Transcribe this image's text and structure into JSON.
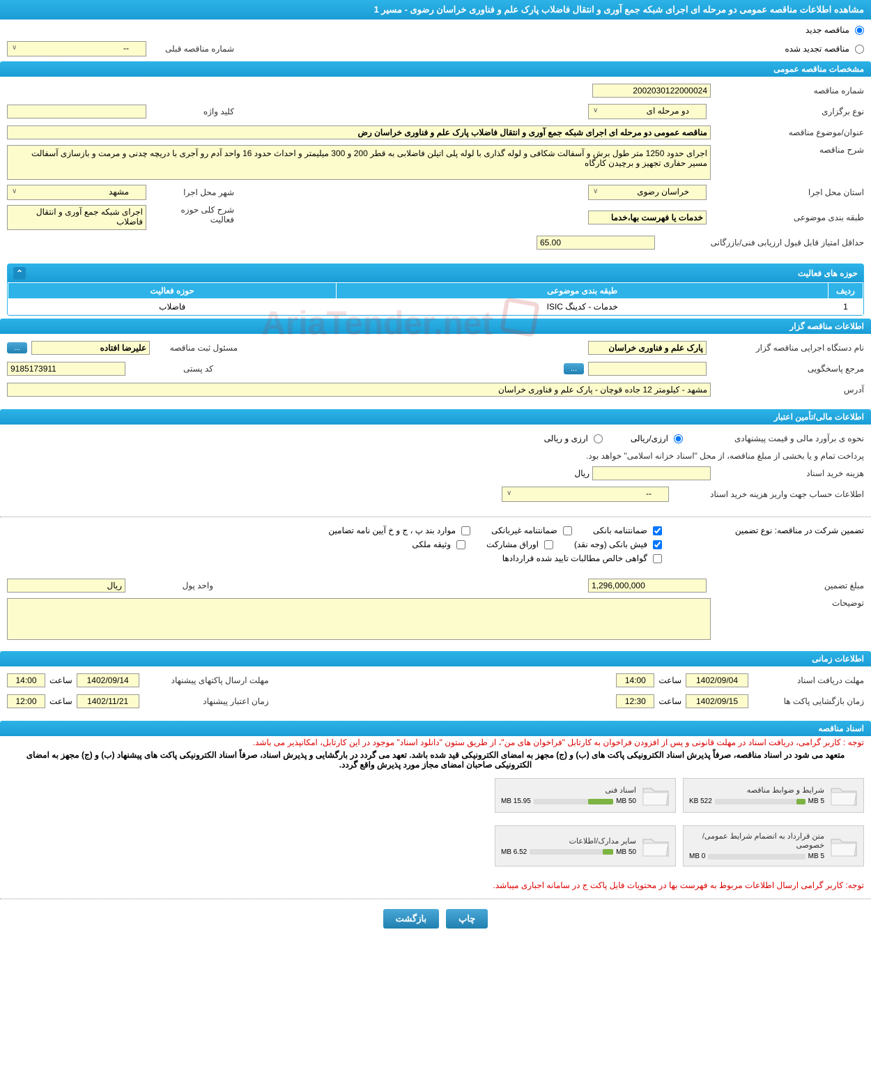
{
  "page_title": "مشاهده اطلاعات مناقصه عمومی دو مرحله ای اجرای شبکه جمع آوری و انتقال فاضلاب پارک علم و فناوری خراسان رضوی - مسیر 1",
  "tender_status": {
    "new_label": "مناقصه جدید",
    "renewed_label": "مناقصه تجدید شده",
    "prev_number_label": "شماره مناقصه قبلی",
    "prev_number_value": "--"
  },
  "section_general": {
    "header": "مشخصات مناقصه عمومی",
    "number_label": "شماره مناقصه",
    "number_value": "2002030122000024",
    "type_label": "نوع برگزاری",
    "type_value": "دو مرحله ای",
    "keyword_label": "کلید واژه",
    "keyword_value": "",
    "subject_label": "عنوان/موضوع مناقصه",
    "subject_value": "مناقصه عمومی دو مرحله ای اجرای شبکه جمع آوری و انتقال فاضلاب پارک علم و فناوری خراسان رض",
    "desc_label": "شرح مناقصه",
    "desc_value": "اجرای حدود 1250 متر طول برش و آسفالت شکافی و لوله گذاری با لوله پلی اتیلن فاضلابی به قطر 200 و 300 میلیمتر و احداث حدود 16 واحد آدم رو آجری با دریچه چدنی و مرمت و بازسازی آسفالت مسیر حفاری تجهیز و برچیدن کارگاه",
    "province_label": "استان محل اجرا",
    "province_value": "خراسان رضوی",
    "city_label": "شهر محل اجرا",
    "city_value": "مشهد",
    "category_label": "طبقه بندی موضوعی",
    "category_value": "خدمات یا فهرست بها،خدما",
    "activity_label": "شرح کلی حوزه فعالیت",
    "activity_value": "اجرای شبکه جمع آوری و انتقال فاضلاب",
    "min_score_label": "حداقل امتیاز قابل قبول ارزیابی فنی/بازرگانی",
    "min_score_value": "65.00"
  },
  "activities_table": {
    "header": "حوزه های فعالیت",
    "col_row": "ردیف",
    "col_cat": "طبقه بندی موضوعی",
    "col_act": "حوزه فعالیت",
    "rows": [
      {
        "n": "1",
        "cat": "خدمات - کدینگ ISIC",
        "act": "فاضلاب"
      }
    ]
  },
  "section_organizer": {
    "header": "اطلاعات مناقصه گزار",
    "org_label": "نام دستگاه اجرایی مناقصه گزار",
    "org_value": "پارک علم و فناوری خراسان",
    "reg_label": "مسئول ثبت مناقصه",
    "reg_value": "علیرضا افتاده",
    "more_btn": "...",
    "resp_label": "مرجع پاسخگویی",
    "resp_value": "",
    "resp_btn": "...",
    "postal_label": "کد پستی",
    "postal_value": "9185173911",
    "address_label": "آدرس",
    "address_value": "مشهد - کیلومتر 12 جاده قوچان - پارک علم و فناوری خراسان"
  },
  "section_finance": {
    "header": "اطلاعات مالی/تأمین اعتبار",
    "est_label": "نحوه ی برآورد مالی و قیمت پیشنهادی",
    "opt_ar": "ارزی/ریالی",
    "opt_r": "ارزی و ریالی",
    "pay_note": "پرداخت تمام و یا بخشی از مبلغ مناقصه، از محل \"اسناد خزانه اسلامی\" خواهد بود.",
    "doc_cost_label": "هزینه خرید اسناد",
    "doc_cost_unit": "ریال",
    "doc_cost_value": "",
    "account_label": "اطلاعات حساب جهت واریز هزینه خرید اسناد",
    "account_value": "--"
  },
  "guarantee": {
    "label": "تضمین شرکت در مناقصه:   نوع تضمین",
    "opts": {
      "bank_guarantee": "ضمانتنامه بانکی",
      "nonbank_guarantee": "ضمانتنامه غیربانکی",
      "items_note": "موارد بند پ ، ج و خ آیین نامه تضامین",
      "bank_receipt": "فیش بانکی (وجه نقد)",
      "participation": "اوراق مشارکت",
      "property": "وثیقه ملکی",
      "cert": "گواهی خالص مطالبات تایید شده قراردادها"
    },
    "amount_label": "مبلغ تضمین",
    "amount_value": "1,296,000,000",
    "unit_label": "واحد پول",
    "unit_value": "ریال",
    "notes_label": "توضیحات"
  },
  "section_time": {
    "header": "اطلاعات زمانی",
    "doc_deadline_label": "مهلت دریافت اسناد",
    "doc_deadline_date": "1402/09/04",
    "doc_deadline_time": "14:00",
    "packet_deadline_label": "مهلت ارسال پاکتهای پیشنهاد",
    "packet_deadline_date": "1402/09/14",
    "packet_deadline_time": "14:00",
    "opening_label": "زمان بازگشایی پاکت ها",
    "opening_date": "1402/09/15",
    "opening_time": "12:30",
    "validity_label": "زمان اعتبار پیشنهاد",
    "validity_date": "1402/11/21",
    "validity_time": "12:00",
    "time_label": "ساعت"
  },
  "section_docs": {
    "header": "اسناد مناقصه",
    "note1": "توجه : کاربر گرامی، دریافت اسناد در مهلت قانونی و پس از افزودن فراخوان به کارتابل \"فراخوان های من\"، از طریق ستون \"دانلود اسناد\" موجود در این کارتابل، امکانپذیر می باشد.",
    "note2": "متعهد می شود در اسناد مناقصه، صرفاً پذیرش اسناد الکترونیکی پاکت های (ب) و (ج) مجهز به امضای الکترونیکی قید شده باشد. تعهد می گردد در بارگشایی و پذیرش اسناد، صرفاً اسناد الکترونیکی پاکت های پیشنهاد (ب) و (ج) مجهز به امضای الکترونیکی صاحبان امضای مجاز مورد پذیرش واقع گردد.",
    "docs": [
      {
        "title": "شرایط و ضوابط مناقصه",
        "used": "522 KB",
        "total": "5 MB",
        "pct": 10
      },
      {
        "title": "اسناد فنی",
        "used": "15.95 MB",
        "total": "50 MB",
        "pct": 32
      },
      {
        "title": "متن قرارداد به انضمام شرایط عمومی/خصوصی",
        "used": "0 MB",
        "total": "5 MB",
        "pct": 0
      },
      {
        "title": "سایر مدارک/اطلاعات",
        "used": "6.52 MB",
        "total": "50 MB",
        "pct": 13
      }
    ],
    "note3": "توجه: کاربر گرامی ارسال اطلاعات مربوط به فهرست بها در محتویات فایل پاکت ج در سامانه اجباری میباشد."
  },
  "buttons": {
    "print": "چاپ",
    "back": "بازگشت"
  },
  "colors": {
    "header_bg": "#2db3e8",
    "field_bg": "#fdfccc",
    "btn_bg": "#2080b0",
    "red": "#d00",
    "bar_fill": "#7cb342"
  },
  "watermark_text": "AriaTender.net"
}
